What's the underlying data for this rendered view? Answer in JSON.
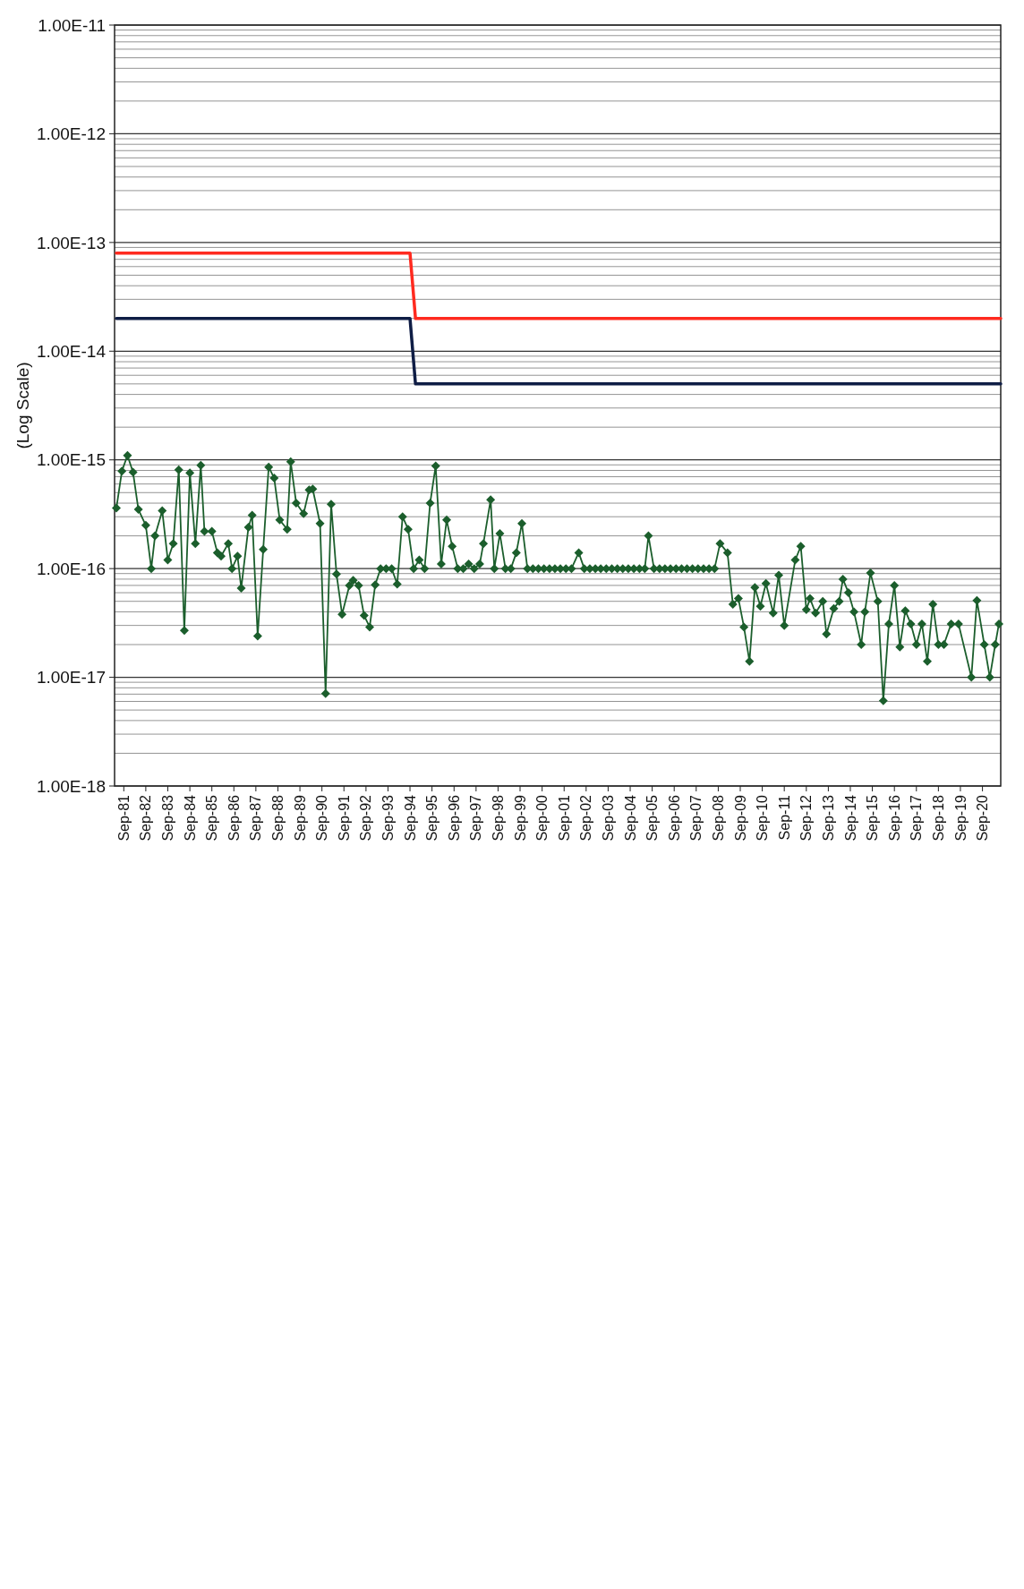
{
  "chart_data": {
    "type": "line",
    "ylabel": "(Log Scale)",
    "log": "y",
    "grid": "y",
    "xlim": [
      "1981-04",
      "2021-07"
    ],
    "ylim": [
      1e-18,
      1e-11
    ],
    "yticks": [
      {
        "value": 1e-18,
        "label": "1.00E-18"
      },
      {
        "value": 1e-17,
        "label": "1.00E-17"
      },
      {
        "value": 1e-16,
        "label": "1.00E-16"
      },
      {
        "value": 1e-15,
        "label": "1.00E-15"
      },
      {
        "value": 1e-14,
        "label": "1.00E-14"
      },
      {
        "value": 1e-13,
        "label": "1.00E-13"
      },
      {
        "value": 1e-12,
        "label": "1.00E-12"
      },
      {
        "value": 1e-11,
        "label": "1.00E-11"
      }
    ],
    "xticks": [
      {
        "value": "1981-09",
        "label": "Sep-81"
      },
      {
        "value": "1982-09",
        "label": "Sep-82"
      },
      {
        "value": "1983-09",
        "label": "Sep-83"
      },
      {
        "value": "1984-09",
        "label": "Sep-84"
      },
      {
        "value": "1985-09",
        "label": "Sep-85"
      },
      {
        "value": "1986-09",
        "label": "Sep-86"
      },
      {
        "value": "1987-09",
        "label": "Sep-87"
      },
      {
        "value": "1988-09",
        "label": "Sep-88"
      },
      {
        "value": "1989-09",
        "label": "Sep-89"
      },
      {
        "value": "1990-09",
        "label": "Sep-90"
      },
      {
        "value": "1991-09",
        "label": "Sep-91"
      },
      {
        "value": "1992-09",
        "label": "Sep-92"
      },
      {
        "value": "1993-09",
        "label": "Sep-93"
      },
      {
        "value": "1994-09",
        "label": "Sep-94"
      },
      {
        "value": "1995-09",
        "label": "Sep-95"
      },
      {
        "value": "1996-09",
        "label": "Sep-96"
      },
      {
        "value": "1997-09",
        "label": "Sep-97"
      },
      {
        "value": "1998-09",
        "label": "Sep-98"
      },
      {
        "value": "1999-09",
        "label": "Sep-99"
      },
      {
        "value": "2000-09",
        "label": "Sep-00"
      },
      {
        "value": "2001-09",
        "label": "Sep-01"
      },
      {
        "value": "2002-09",
        "label": "Sep-02"
      },
      {
        "value": "2003-09",
        "label": "Sep-03"
      },
      {
        "value": "2004-09",
        "label": "Sep-04"
      },
      {
        "value": "2005-09",
        "label": "Sep-05"
      },
      {
        "value": "2006-09",
        "label": "Sep-06"
      },
      {
        "value": "2007-09",
        "label": "Sep-07"
      },
      {
        "value": "2008-09",
        "label": "Sep-08"
      },
      {
        "value": "2009-09",
        "label": "Sep-09"
      },
      {
        "value": "2010-09",
        "label": "Sep-10"
      },
      {
        "value": "2011-09",
        "label": "Sep-11"
      },
      {
        "value": "2012-09",
        "label": "Sep-12"
      },
      {
        "value": "2013-09",
        "label": "Sep-13"
      },
      {
        "value": "2014-09",
        "label": "Sep-14"
      },
      {
        "value": "2015-09",
        "label": "Sep-15"
      },
      {
        "value": "2016-09",
        "label": "Sep-16"
      },
      {
        "value": "2017-09",
        "label": "Sep-17"
      },
      {
        "value": "2018-09",
        "label": "Sep-18"
      },
      {
        "value": "2019-09",
        "label": "Sep-19"
      },
      {
        "value": "2020-09",
        "label": "Sep-20"
      }
    ],
    "series": [
      {
        "color": "#ff2a1f",
        "marker": "none",
        "x": [
          "1981-05",
          "1994-09",
          "1994-12",
          "2021-07"
        ],
        "values": [
          8e-14,
          8e-14,
          2e-14,
          2e-14
        ]
      },
      {
        "color": "#0f1d45",
        "marker": "none",
        "x": [
          "1981-05",
          "1994-09",
          "1994-12",
          "2021-07"
        ],
        "values": [
          2e-14,
          2e-14,
          5e-15,
          5e-15
        ]
      },
      {
        "color": "#1b5e2c",
        "marker": "diamond",
        "x": [
          "1981-05",
          "1981-08",
          "1981-11",
          "1982-02",
          "1982-05",
          "1982-09",
          "1982-12",
          "1983-02",
          "1983-06",
          "1983-09",
          "1983-12",
          "1984-03",
          "1984-06",
          "1984-09",
          "1984-12",
          "1985-03",
          "1985-05",
          "1985-09",
          "1985-12",
          "1986-02",
          "1986-06",
          "1986-08",
          "1986-11",
          "1987-01",
          "1987-05",
          "1987-07",
          "1987-10",
          "1988-01",
          "1988-04",
          "1988-07",
          "1988-10",
          "1989-02",
          "1989-04",
          "1989-07",
          "1989-11",
          "1990-02",
          "1990-04",
          "1990-08",
          "1990-11",
          "1991-02",
          "1991-05",
          "1991-08",
          "1991-12",
          "1992-02",
          "1992-05",
          "1992-08",
          "1992-11",
          "1993-02",
          "1993-05",
          "1993-08",
          "1993-11",
          "1994-02",
          "1994-05",
          "1994-08",
          "1994-11",
          "1995-02",
          "1995-05",
          "1995-08",
          "1995-11",
          "1996-02",
          "1996-05",
          "1996-08",
          "1996-11",
          "1997-02",
          "1997-05",
          "1997-08",
          "1997-11",
          "1998-01",
          "1998-05",
          "1998-07",
          "1998-10",
          "1999-01",
          "1999-04",
          "1999-07",
          "1999-10",
          "2000-01",
          "2000-04",
          "2000-07",
          "2000-10",
          "2001-01",
          "2001-04",
          "2001-07",
          "2001-10",
          "2002-01",
          "2002-05",
          "2002-08",
          "2002-11",
          "2003-02",
          "2003-05",
          "2003-08",
          "2003-11",
          "2004-02",
          "2004-05",
          "2004-08",
          "2004-11",
          "2005-02",
          "2005-05",
          "2005-07",
          "2005-10",
          "2006-01",
          "2006-04",
          "2006-07",
          "2006-10",
          "2007-01",
          "2007-04",
          "2007-07",
          "2007-10",
          "2008-01",
          "2008-04",
          "2008-07",
          "2008-10",
          "2009-02",
          "2009-05",
          "2009-08",
          "2009-11",
          "2010-02",
          "2010-05",
          "2010-08",
          "2010-11",
          "2011-03",
          "2011-06",
          "2011-09",
          "2012-03",
          "2012-06",
          "2012-09",
          "2012-11",
          "2013-02",
          "2013-06",
          "2013-08",
          "2013-12",
          "2014-03",
          "2014-05",
          "2014-08",
          "2014-11",
          "2015-03",
          "2015-05",
          "2015-08",
          "2015-12",
          "2016-03",
          "2016-06",
          "2016-09",
          "2016-12",
          "2017-03",
          "2017-06",
          "2017-09",
          "2017-12",
          "2018-03",
          "2018-06",
          "2018-09",
          "2018-12",
          "2019-04",
          "2019-08",
          "2020-03",
          "2020-06",
          "2020-10",
          "2021-01",
          "2021-04",
          "2021-06"
        ],
        "values": [
          3.6e-16,
          7.9e-16,
          1.1e-15,
          7.7e-16,
          3.5e-16,
          2.5e-16,
          1e-16,
          2e-16,
          3.4e-16,
          1.2e-16,
          1.7e-16,
          8.1e-16,
          2.7e-17,
          7.6e-16,
          1.7e-16,
          8.9e-16,
          2.2e-16,
          2.2e-16,
          1.4e-16,
          1.3e-16,
          1.7e-16,
          1e-16,
          1.3e-16,
          6.6e-17,
          2.4e-16,
          3.1e-16,
          2.4e-17,
          1.5e-16,
          8.6e-16,
          6.8e-16,
          2.8e-16,
          2.3e-16,
          9.6e-16,
          4e-16,
          3.2e-16,
          5.3e-16,
          5.4e-16,
          2.6e-16,
          7.1e-18,
          3.9e-16,
          8.9e-17,
          3.8e-17,
          7e-17,
          7.8e-17,
          7e-17,
          3.7e-17,
          2.9e-17,
          7.1e-17,
          1e-16,
          1e-16,
          1e-16,
          7.2e-17,
          3e-16,
          2.3e-16,
          1e-16,
          1.2e-16,
          1e-16,
          4e-16,
          8.8e-16,
          1.1e-16,
          2.8e-16,
          1.6e-16,
          1e-16,
          1e-16,
          1.1e-16,
          1e-16,
          1.1e-16,
          1.7e-16,
          4.3e-16,
          1e-16,
          2.1e-16,
          1e-16,
          1e-16,
          1.4e-16,
          2.6e-16,
          1e-16,
          1e-16,
          1e-16,
          1e-16,
          1e-16,
          1e-16,
          1e-16,
          1e-16,
          1e-16,
          1.4e-16,
          1e-16,
          1e-16,
          1e-16,
          1e-16,
          1e-16,
          1e-16,
          1e-16,
          1e-16,
          1e-16,
          1e-16,
          1e-16,
          1e-16,
          2e-16,
          1e-16,
          1e-16,
          1e-16,
          1e-16,
          1e-16,
          1e-16,
          1e-16,
          1e-16,
          1e-16,
          1e-16,
          1e-16,
          1e-16,
          1.7e-16,
          1.4e-16,
          4.7e-17,
          5.3e-17,
          2.9e-17,
          1.4e-17,
          6.7e-17,
          4.5e-17,
          7.3e-17,
          3.9e-17,
          8.7e-17,
          3e-17,
          1.2e-16,
          1.6e-16,
          4.2e-17,
          5.3e-17,
          3.9e-17,
          5e-17,
          2.5e-17,
          4.3e-17,
          5e-17,
          8e-17,
          6e-17,
          4e-17,
          2e-17,
          4e-17,
          9.1e-17,
          5e-17,
          6.1e-18,
          3.1e-17,
          7e-17,
          1.9e-17,
          4.1e-17,
          3.1e-17,
          2e-17,
          3.1e-17,
          1.4e-17,
          4.7e-17,
          2e-17,
          2e-17,
          3.1e-17,
          3.1e-17,
          1e-17,
          5.1e-17,
          2e-17,
          1e-17,
          2e-17,
          3.1e-17
        ]
      }
    ]
  }
}
